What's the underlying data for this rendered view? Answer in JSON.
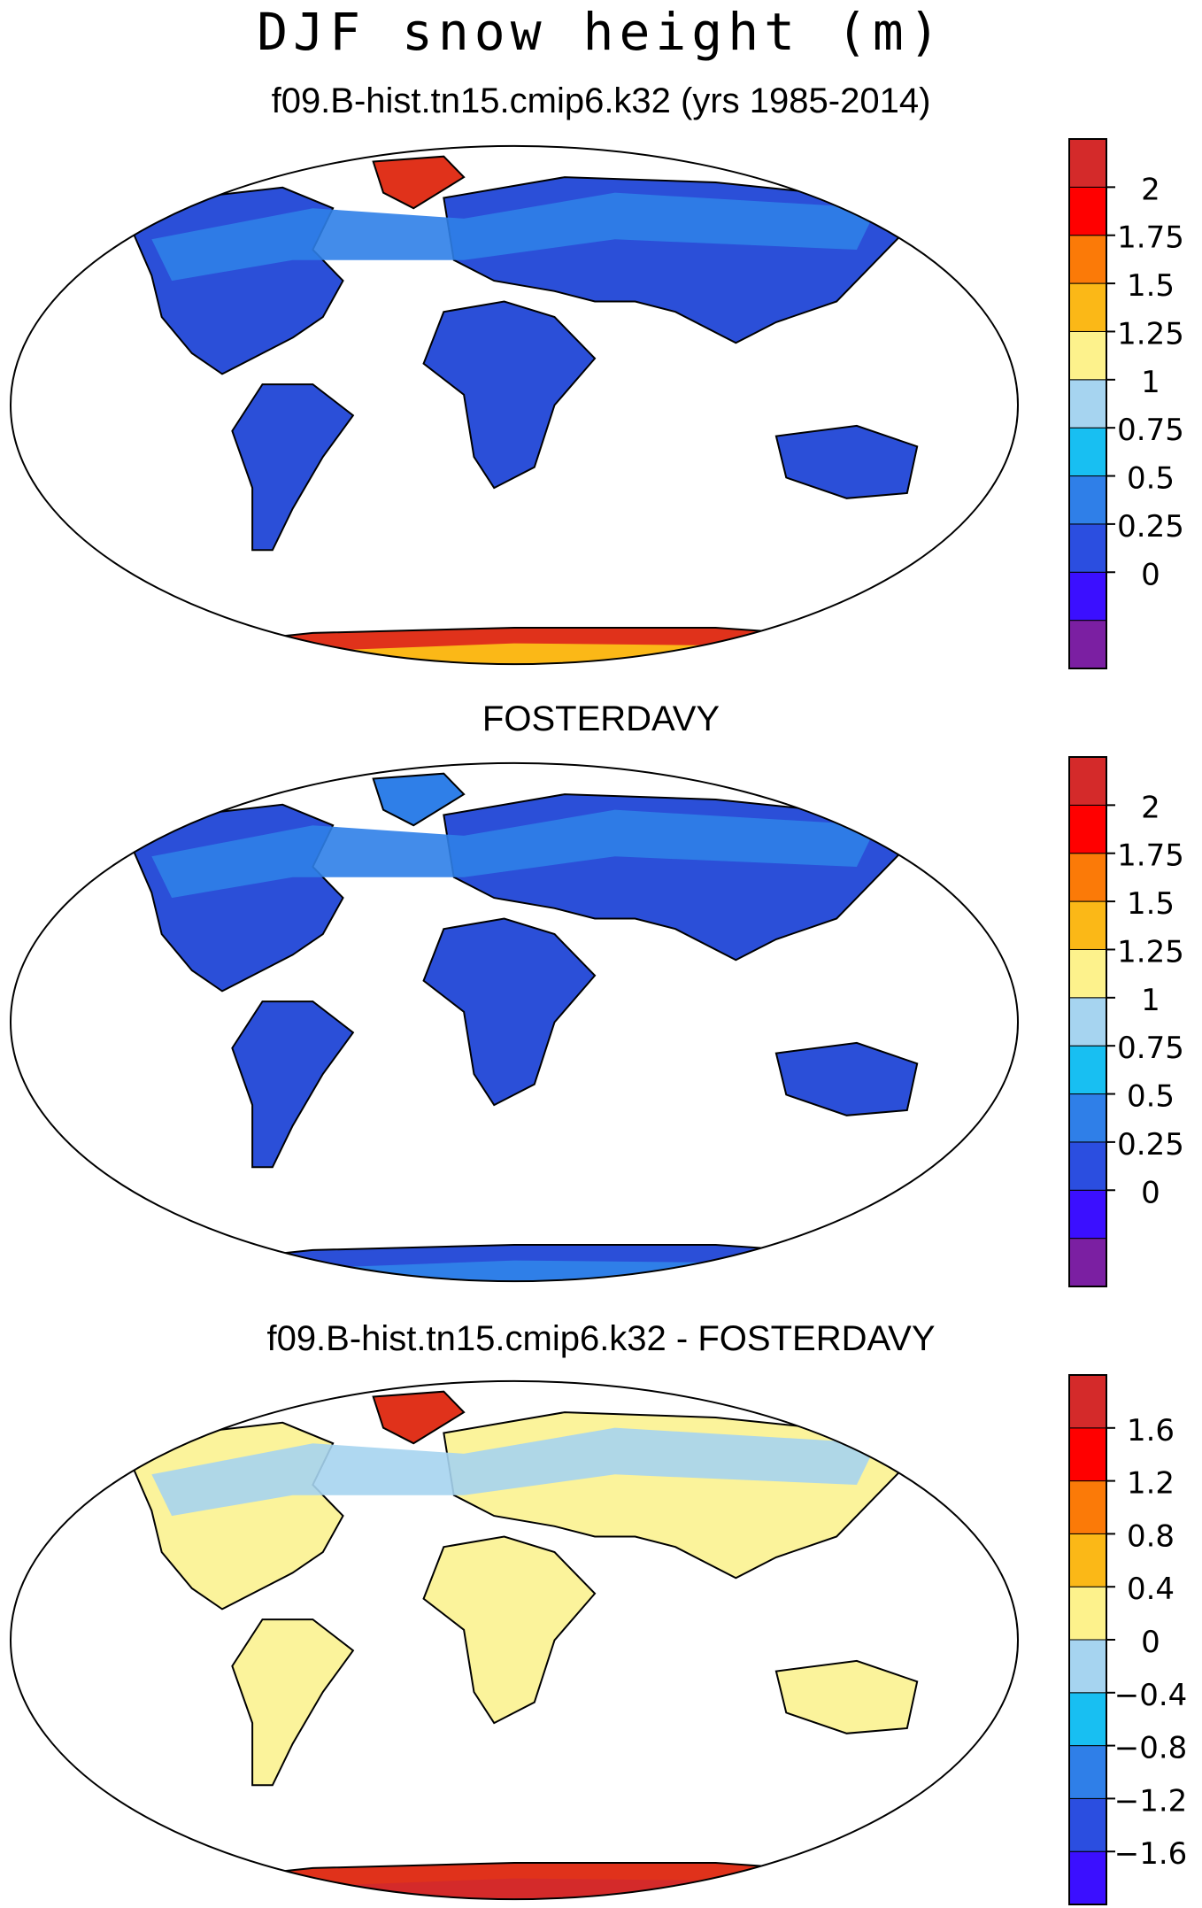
{
  "title": "DJF snow height (m)",
  "colors": {
    "outline": "#000000",
    "land_coast": "#000000"
  },
  "panels": [
    {
      "id": "model",
      "title": "f09.B-hist.tn15.cmip6.k32 (yrs 1985-2014)",
      "colorbar": {
        "labels": [
          "2",
          "1.75",
          "1.5",
          "1.25",
          "1",
          "0.75",
          "0.5",
          "0.25",
          "0"
        ],
        "colors": [
          "#7b1fa2",
          "#3b0fff",
          "#2b4ee0",
          "#2f7fe8",
          "#18bff2",
          "#a6d4f0",
          "#fdf28c",
          "#fbb817",
          "#fb7a08",
          "#ff0000",
          "#d42a2a"
        ]
      },
      "fields": {
        "land": "#2b4fd8",
        "north_high": "#2f7fe8",
        "greenland": "#e0321b",
        "antarctica": "#e0321b",
        "antarctica_interior": "#fbb817"
      }
    },
    {
      "id": "obs",
      "title": "FOSTERDAVY",
      "colorbar": {
        "labels": [
          "2",
          "1.75",
          "1.5",
          "1.25",
          "1",
          "0.75",
          "0.5",
          "0.25",
          "0"
        ],
        "colors": [
          "#7b1fa2",
          "#3b0fff",
          "#2b4ee0",
          "#2f7fe8",
          "#18bff2",
          "#a6d4f0",
          "#fdf28c",
          "#fbb817",
          "#fb7a08",
          "#ff0000",
          "#d42a2a"
        ]
      },
      "fields": {
        "land": "#2b4fd8",
        "north_high": "#2f7fe8",
        "greenland": "#2f7fe8",
        "antarctica": "#2b4fd8",
        "antarctica_interior": "#2f7fe8"
      }
    },
    {
      "id": "diff",
      "title": "f09.B-hist.tn15.cmip6.k32 - FOSTERDAVY",
      "colorbar": {
        "labels": [
          "1.6",
          "1.2",
          "0.8",
          "0.4",
          "0",
          "−0.4",
          "−0.8",
          "−1.2",
          "−1.6"
        ],
        "colors": [
          "#3b0fff",
          "#2b4ee0",
          "#2f7fe8",
          "#18bff2",
          "#a6d4f0",
          "#fdf28c",
          "#fbb817",
          "#fb7a08",
          "#ff0000",
          "#d42a2a"
        ]
      },
      "fields": {
        "land": "#fbf39b",
        "north_high": "#a6d4f0",
        "greenland": "#e0321b",
        "antarctica": "#e0321b",
        "antarctica_interior": "#d42a2a"
      }
    }
  ]
}
